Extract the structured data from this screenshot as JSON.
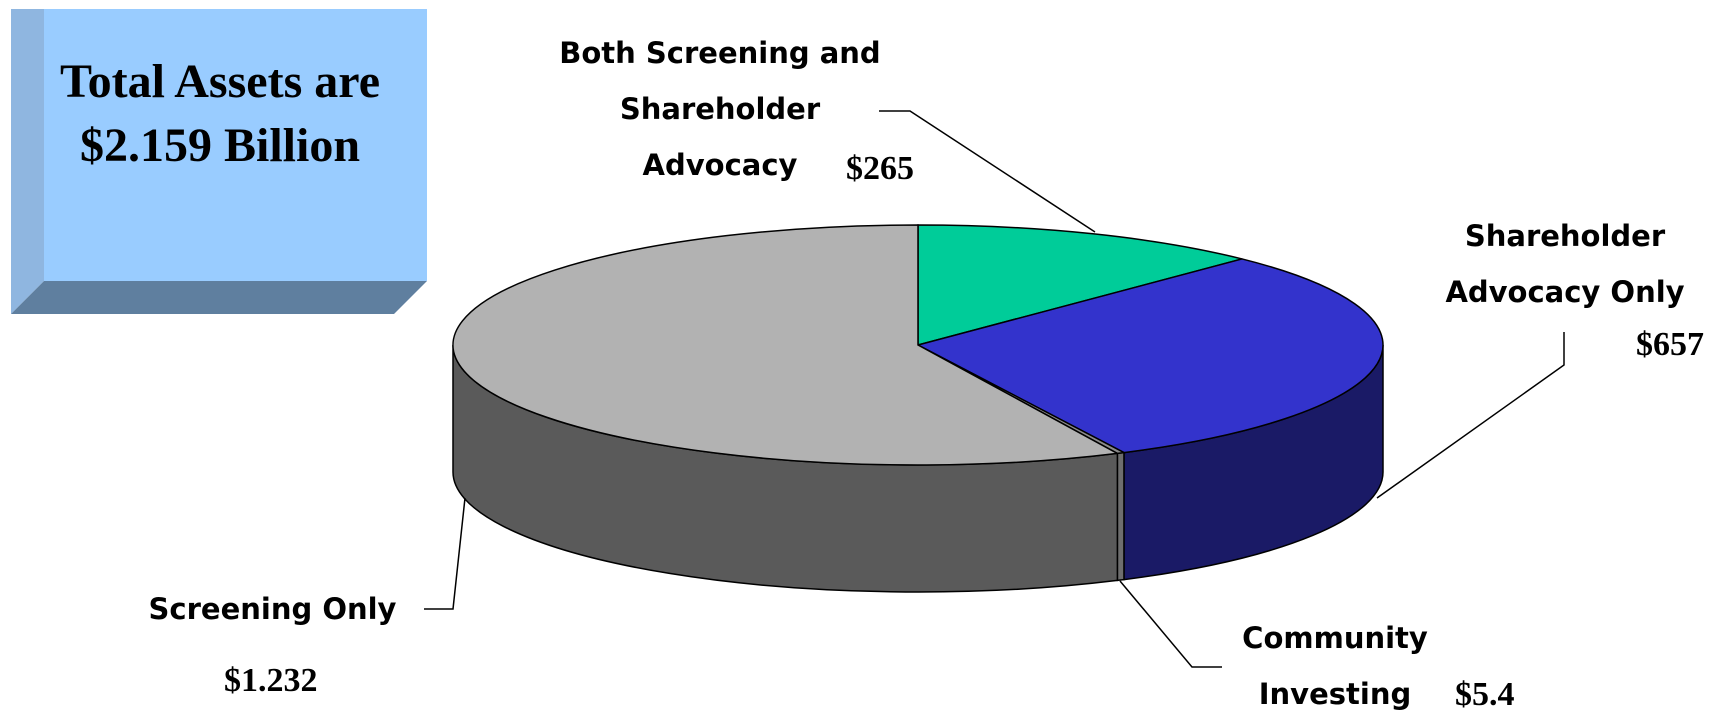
{
  "chart_data": {
    "type": "pie3d",
    "title": "Total Assets are $2.159 Billion",
    "categories": [
      "Both Screening and Shareholder Advocacy",
      "Shareholder Advocacy Only",
      "Community Investing",
      "Screening Only"
    ],
    "values": [
      265,
      657,
      5.4,
      1232
    ],
    "value_labels": [
      "$265",
      "$657",
      "$5.4",
      "$1.232"
    ],
    "colors": [
      "#00cc99",
      "#3333cc",
      "#8c8c8c",
      "#b2b2b2"
    ],
    "side_colors": [
      "#006b50",
      "#1a1a66",
      "#6e6e6e",
      "#5a5a5a"
    ]
  }
}
